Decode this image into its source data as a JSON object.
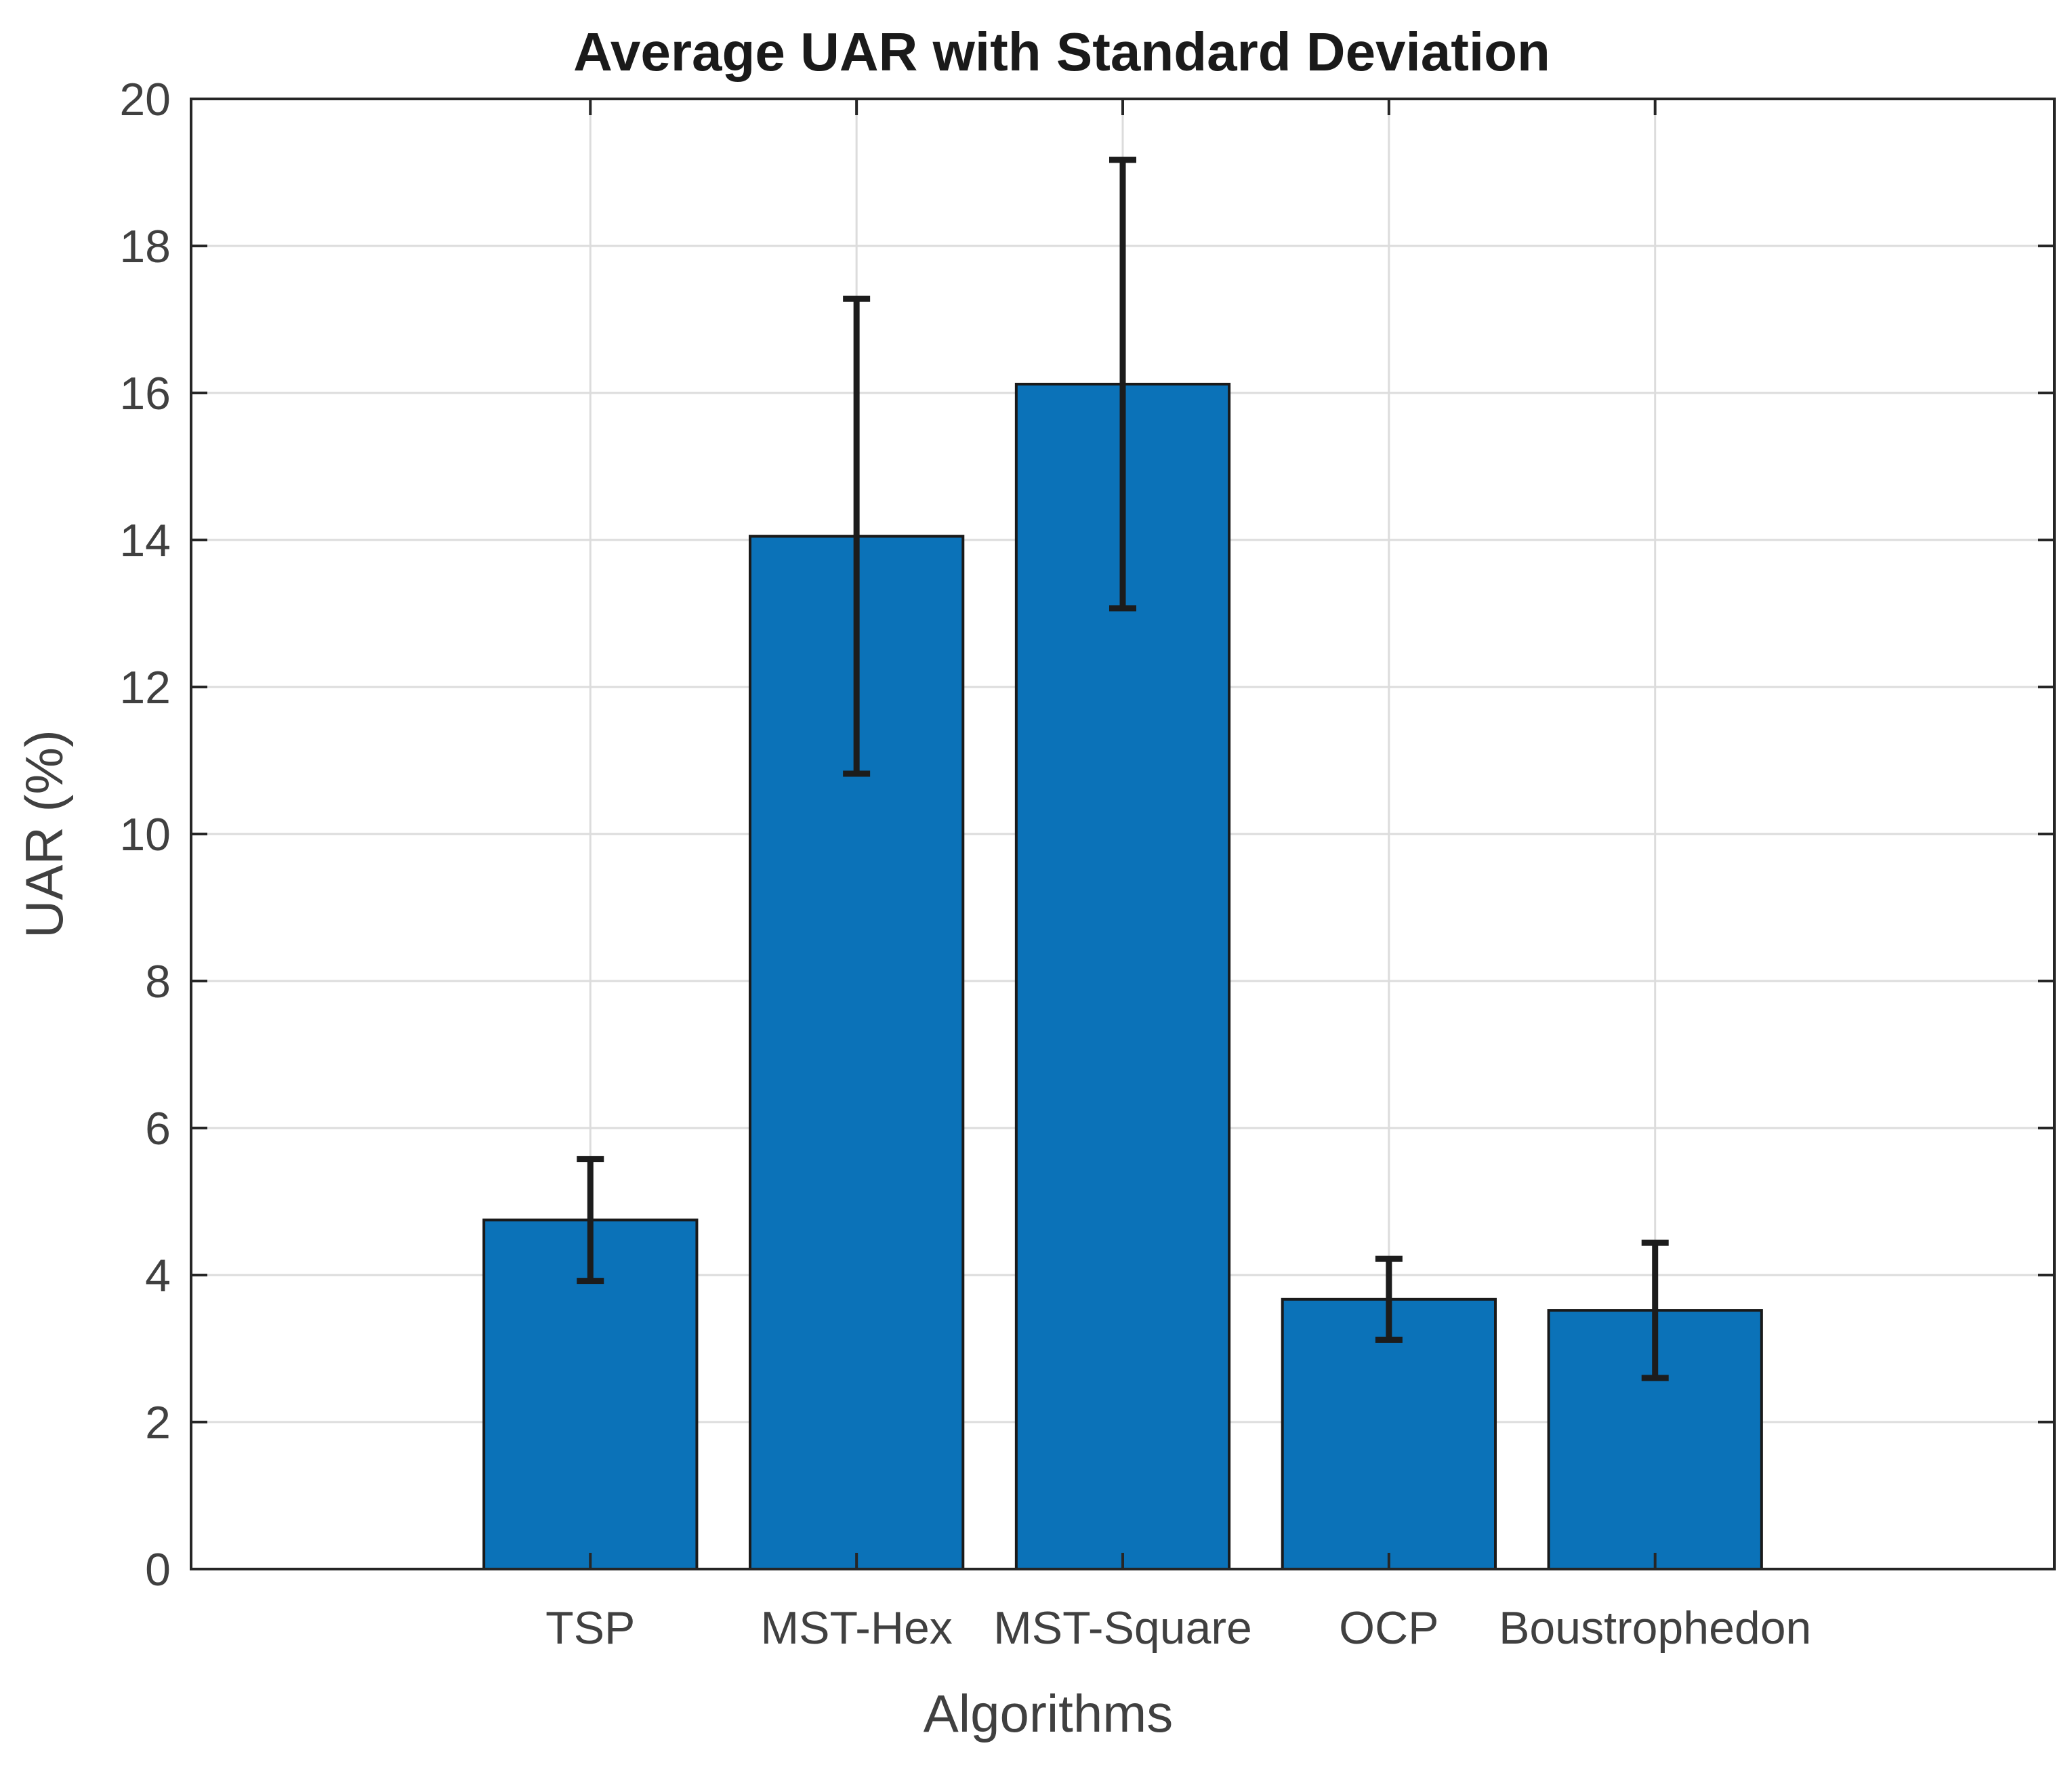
{
  "chart_data": {
    "type": "bar",
    "title": "Average UAR with Standard Deviation",
    "xlabel": "Algorithms",
    "ylabel": "UAR (%)",
    "categories": [
      "TSP",
      "MST-Hex",
      "MST-Square",
      "OCP",
      "Boustrophedon"
    ],
    "values": [
      4.75,
      14.05,
      16.12,
      3.67,
      3.52
    ],
    "error_low": [
      3.92,
      10.82,
      13.07,
      3.12,
      2.6
    ],
    "error_high": [
      5.58,
      17.28,
      19.17,
      4.22,
      4.44
    ],
    "ylim": [
      0,
      20
    ],
    "xlim": [
      0,
      7
    ],
    "yticks": [
      "0",
      "2",
      "4",
      "6",
      "8",
      "10",
      "12",
      "14",
      "16",
      "18",
      "20"
    ],
    "grid": true,
    "bar_color": "#0b72b8",
    "edge_color": "#1a1a1a",
    "error_color": "#1c1c1c"
  }
}
